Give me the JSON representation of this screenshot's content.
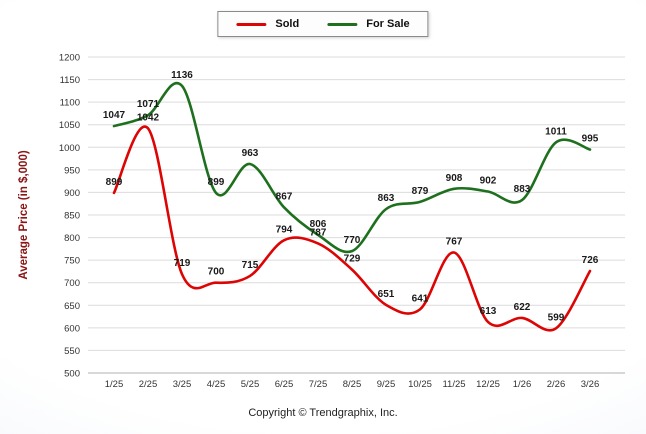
{
  "footer": {
    "copyright": "Copyright © Trendgraphix, Inc."
  },
  "chart_data": {
    "type": "line",
    "title": "",
    "xlabel": "",
    "ylabel": "Average Price (in $,000)",
    "ylabel_color": "#8b1515",
    "ylim": [
      500,
      1200
    ],
    "ytick_step": 50,
    "grid": true,
    "legend_position": "top-center",
    "categories": [
      "1/25",
      "2/25",
      "3/25",
      "4/25",
      "5/25",
      "6/25",
      "7/25",
      "8/25",
      "9/25",
      "10/25",
      "11/25",
      "12/25",
      "1/26",
      "2/26",
      "3/26"
    ],
    "series": [
      {
        "name": "Sold",
        "color": "#dd0404",
        "values": [
          899,
          1042,
          719,
          700,
          715,
          794,
          787,
          729,
          651,
          641,
          767,
          613,
          622,
          599,
          726
        ]
      },
      {
        "name": "For Sale",
        "color": "#1e701e",
        "values": [
          1047,
          1071,
          1136,
          899,
          963,
          867,
          806,
          770,
          863,
          879,
          908,
          902,
          883,
          1011,
          995
        ]
      }
    ]
  }
}
